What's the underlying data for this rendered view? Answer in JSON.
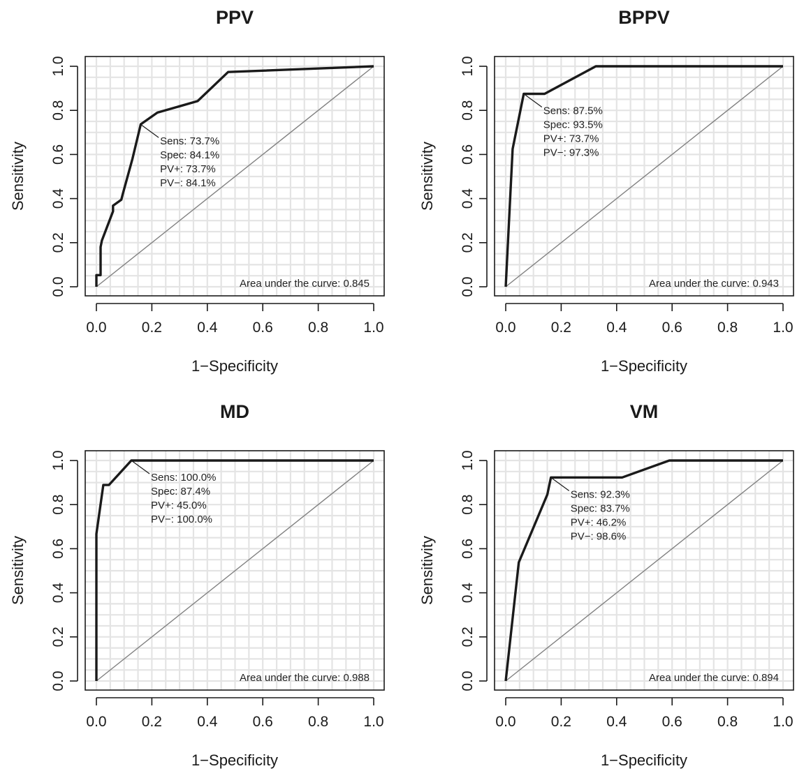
{
  "chart_data": [
    {
      "type": "line",
      "title": "PPV",
      "xlabel": "1−Specificity",
      "ylabel": "Sensitivity",
      "xlim": [
        0,
        1
      ],
      "ylim": [
        0,
        1
      ],
      "xticks": [
        "0.0",
        "0.2",
        "0.4",
        "0.6",
        "0.8",
        "1.0"
      ],
      "yticks": [
        "0.0",
        "0.2",
        "0.4",
        "0.6",
        "0.8",
        "1.0"
      ],
      "grid": true,
      "series": [
        {
          "x": [
            0,
            0,
            0.015,
            0.015,
            0.02,
            0.06,
            0.06,
            0.09,
            0.095,
            0.13,
            0.16,
            0.22,
            0.365,
            0.475,
            1.0
          ],
          "y": [
            0,
            0.053,
            0.053,
            0.18,
            0.21,
            0.342,
            0.368,
            0.395,
            0.42,
            0.58,
            0.737,
            0.79,
            0.842,
            0.974,
            1.0
          ]
        }
      ],
      "reference_line": {
        "x": [
          0,
          1
        ],
        "y": [
          0,
          1
        ]
      },
      "cutoff_point": {
        "x": 0.159,
        "y": 0.737
      },
      "annotation": [
        "Sens: 73.7%",
        "Spec: 84.1%",
        "PV+: 73.7%",
        "PV−: 84.1%"
      ],
      "auc_text": "Area under the curve: 0.845"
    },
    {
      "type": "line",
      "title": "BPPV",
      "xlabel": "1−Specificity",
      "ylabel": "Sensitivity",
      "xlim": [
        0,
        1
      ],
      "ylim": [
        0,
        1
      ],
      "xticks": [
        "0.0",
        "0.2",
        "0.4",
        "0.6",
        "0.8",
        "1.0"
      ],
      "yticks": [
        "0.0",
        "0.2",
        "0.4",
        "0.6",
        "0.8",
        "1.0"
      ],
      "grid": true,
      "series": [
        {
          "x": [
            0,
            0.025,
            0.065,
            0.14,
            0.325,
            1.0
          ],
          "y": [
            0,
            0.625,
            0.875,
            0.875,
            1.0,
            1.0
          ]
        }
      ],
      "reference_line": {
        "x": [
          0,
          1
        ],
        "y": [
          0,
          1
        ]
      },
      "cutoff_point": {
        "x": 0.065,
        "y": 0.875
      },
      "annotation": [
        "Sens: 87.5%",
        "Spec: 93.5%",
        "PV+: 73.7%",
        "PV−: 97.3%"
      ],
      "auc_text": "Area under the curve: 0.943"
    },
    {
      "type": "line",
      "title": "MD",
      "xlabel": "1−Specificity",
      "ylabel": "Sensitivity",
      "xlim": [
        0,
        1
      ],
      "ylim": [
        0,
        1
      ],
      "xticks": [
        "0.0",
        "0.2",
        "0.4",
        "0.6",
        "0.8",
        "1.0"
      ],
      "yticks": [
        "0.0",
        "0.2",
        "0.4",
        "0.6",
        "0.8",
        "1.0"
      ],
      "grid": true,
      "series": [
        {
          "x": [
            0,
            0,
            0.025,
            0.045,
            0.126,
            1.0
          ],
          "y": [
            0,
            0.667,
            0.889,
            0.889,
            1.0,
            1.0
          ]
        }
      ],
      "reference_line": {
        "x": [
          0,
          1
        ],
        "y": [
          0,
          1
        ]
      },
      "cutoff_point": {
        "x": 0.126,
        "y": 1.0
      },
      "annotation": [
        "Sens: 100.0%",
        "Spec: 87.4%",
        "PV+: 45.0%",
        "PV−: 100.0%"
      ],
      "auc_text": "Area under the curve: 0.988"
    },
    {
      "type": "line",
      "title": "VM",
      "xlabel": "1−Specificity",
      "ylabel": "Sensitivity",
      "xlim": [
        0,
        1
      ],
      "ylim": [
        0,
        1
      ],
      "xticks": [
        "0.0",
        "0.2",
        "0.4",
        "0.6",
        "0.8",
        "1.0"
      ],
      "yticks": [
        "0.0",
        "0.2",
        "0.4",
        "0.6",
        "0.8",
        "1.0"
      ],
      "grid": true,
      "series": [
        {
          "x": [
            0,
            0.047,
            0.15,
            0.163,
            0.42,
            0.59,
            1.0
          ],
          "y": [
            0,
            0.538,
            0.846,
            0.923,
            0.923,
            1.0,
            1.0
          ]
        }
      ],
      "reference_line": {
        "x": [
          0,
          1
        ],
        "y": [
          0,
          1
        ]
      },
      "cutoff_point": {
        "x": 0.163,
        "y": 0.923
      },
      "annotation": [
        "Sens: 92.3%",
        "Spec: 83.7%",
        "PV+: 46.2%",
        "PV−: 98.6%"
      ],
      "auc_text": "Area under the curve: 0.894"
    }
  ]
}
